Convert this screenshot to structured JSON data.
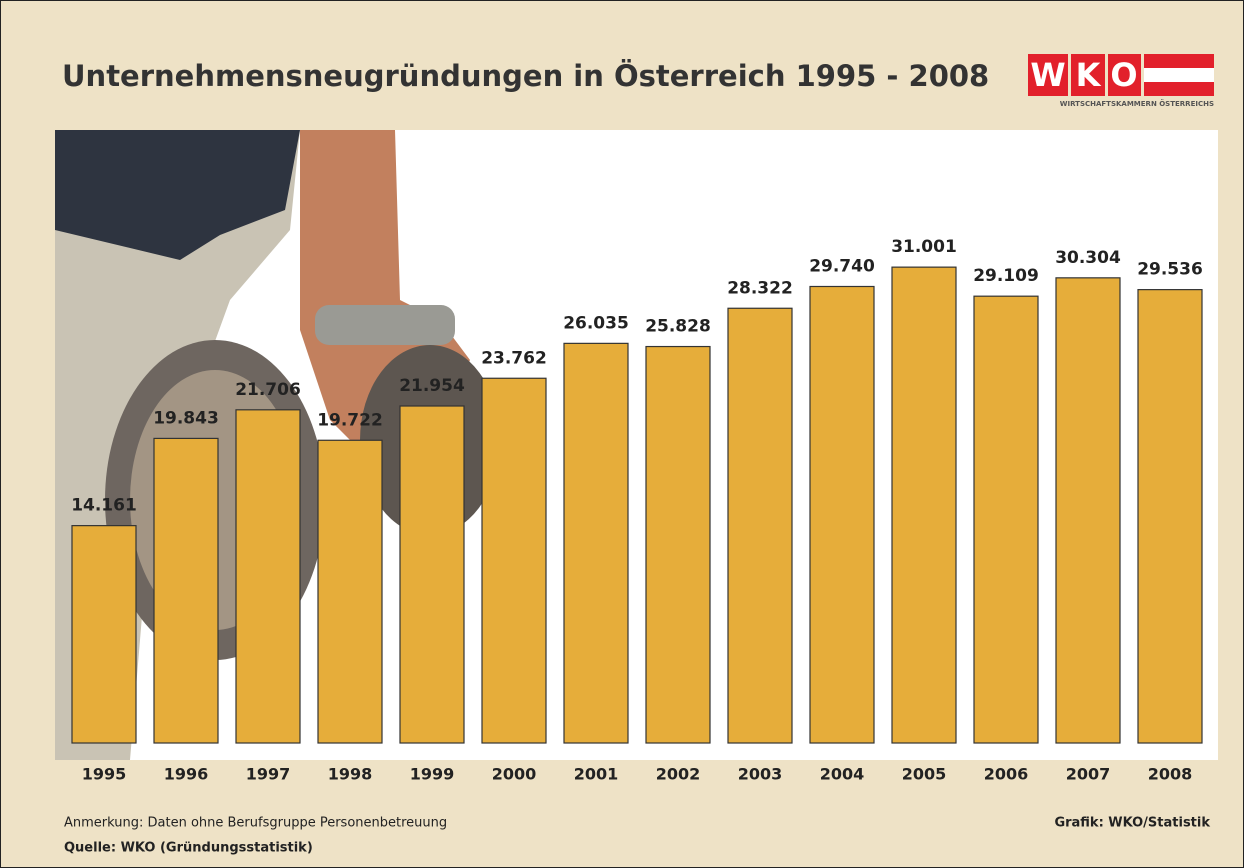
{
  "chart_data": {
    "type": "bar",
    "title": "Unternehmensneugründungen in Österreich 1995 - 2008",
    "categories": [
      "1995",
      "1996",
      "1997",
      "1998",
      "1999",
      "2000",
      "2001",
      "2002",
      "2003",
      "2004",
      "2005",
      "2006",
      "2007",
      "2008"
    ],
    "values": [
      14161,
      19843,
      21706,
      19722,
      21954,
      23762,
      26035,
      25828,
      28322,
      29740,
      31001,
      29109,
      30304,
      29536
    ],
    "value_labels": [
      "14.161",
      "19.843",
      "21.706",
      "19.722",
      "21.954",
      "23.762",
      "26.035",
      "25.828",
      "28.322",
      "29.740",
      "31.001",
      "29.109",
      "30.304",
      "29.536"
    ],
    "color": "#e6ad3a",
    "note": "Anmerkung: Daten ohne Berufsgruppe Personenbetreuung",
    "source": "Quelle: WKO (Gründungsstatistik)",
    "credit": "Grafik: WKO/Statistik"
  },
  "logo": {
    "letters": [
      "W",
      "K",
      "O"
    ],
    "tagline": "WIRTSCHAFTSKAMMERN ÖSTERREICHS"
  }
}
